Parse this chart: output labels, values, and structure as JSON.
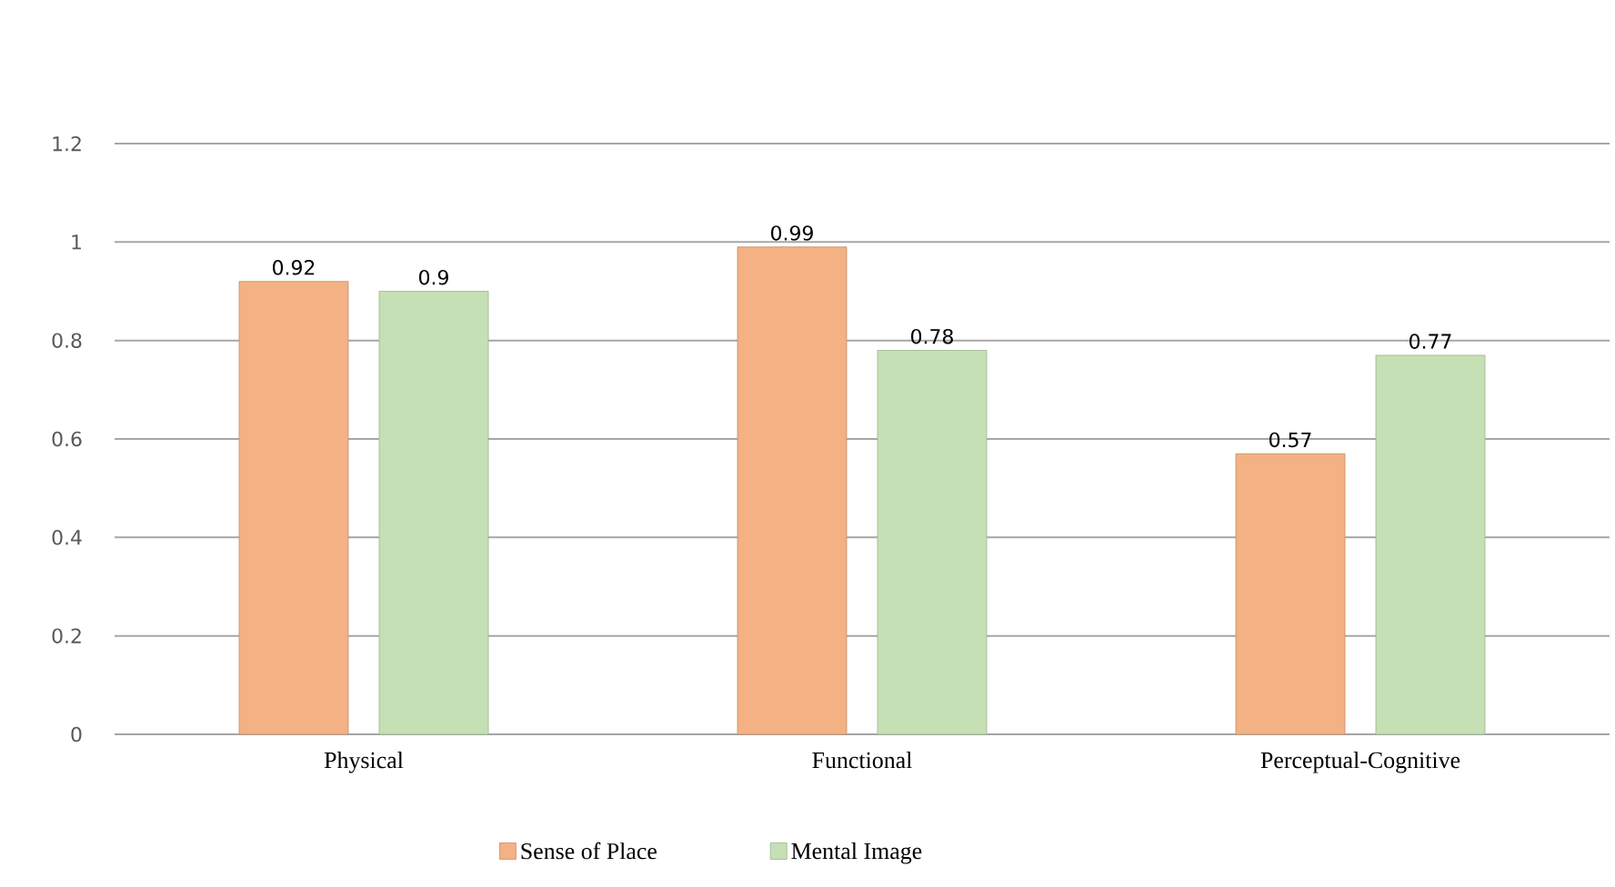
{
  "chart_data": {
    "type": "bar",
    "categories": [
      "Physical",
      "Functional",
      "Perceptual-Cognitive"
    ],
    "series": [
      {
        "name": "Sense of Place",
        "color": "#f4b183",
        "values": [
          0.92,
          0.99,
          0.57
        ]
      },
      {
        "name": "Mental Image",
        "color": "#c5e0b4",
        "values": [
          0.9,
          0.78,
          0.77
        ]
      }
    ],
    "ylim": [
      0,
      1.2
    ],
    "yticks": [
      0,
      0.2,
      0.4,
      0.6,
      0.8,
      1,
      1.2
    ],
    "grid": "y",
    "legend": "bottom",
    "data_labels": true
  }
}
